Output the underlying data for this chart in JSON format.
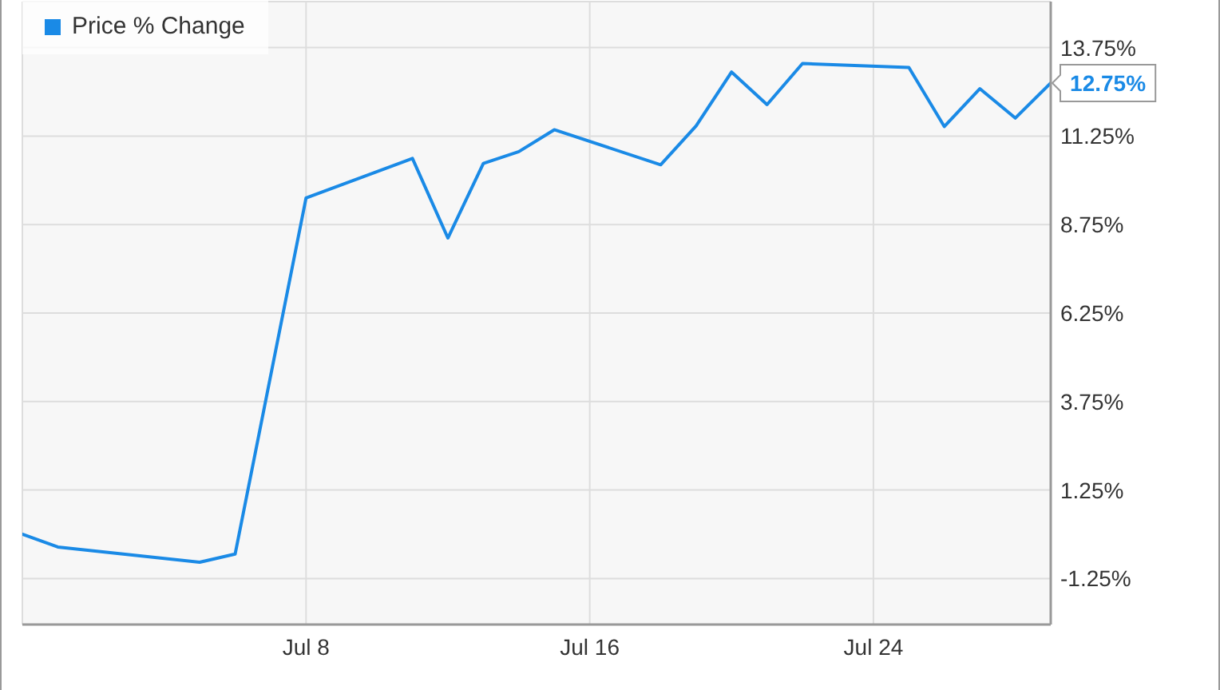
{
  "chart_data": {
    "type": "line",
    "x": [
      "--06-30",
      "--07-01",
      "--07-05",
      "--07-06",
      "--07-08",
      "--07-11",
      "--07-12",
      "--07-13",
      "--07-14",
      "--07-15",
      "--07-18",
      "--07-19",
      "--07-20",
      "--07-21",
      "--07-22",
      "--07-25",
      "--07-26",
      "--07-27",
      "--07-28",
      "--07-29"
    ],
    "series": [
      {
        "name": "Price % Change",
        "color": "#1a8ae6",
        "values": [
          0,
          -0.36,
          -0.79,
          -0.56,
          9.5,
          10.62,
          8.37,
          10.48,
          10.81,
          11.43,
          10.44,
          11.54,
          13.06,
          12.14,
          13.3,
          13.19,
          11.52,
          12.59,
          11.76,
          12.75
        ],
        "value_labels": [
          null,
          null,
          null,
          null,
          null,
          null,
          null,
          null,
          null,
          null,
          null,
          null,
          null,
          null,
          null,
          null,
          null,
          null,
          null,
          "12.75%"
        ]
      }
    ],
    "xlim": [
      "--06-30",
      "--07-29"
    ],
    "xticks": [
      {
        "value": "--07-08",
        "label": "Jul 8"
      },
      {
        "value": "--07-16",
        "label": "Jul 16"
      },
      {
        "value": "--07-24",
        "label": "Jul 24"
      }
    ],
    "ylim": [
      -2.55,
      15.05
    ],
    "yticks": [
      {
        "value": -1.25,
        "label": "-1.25%"
      },
      {
        "value": 1.25,
        "label": "1.25%"
      },
      {
        "value": 3.75,
        "label": "3.75%"
      },
      {
        "value": 6.25,
        "label": "6.25%"
      },
      {
        "value": 8.75,
        "label": "8.75%"
      },
      {
        "value": 11.25,
        "label": "11.25%"
      },
      {
        "value": 13.75,
        "label": "13.75%"
      }
    ],
    "grid": true,
    "legend": "top left",
    "marker": "none"
  }
}
